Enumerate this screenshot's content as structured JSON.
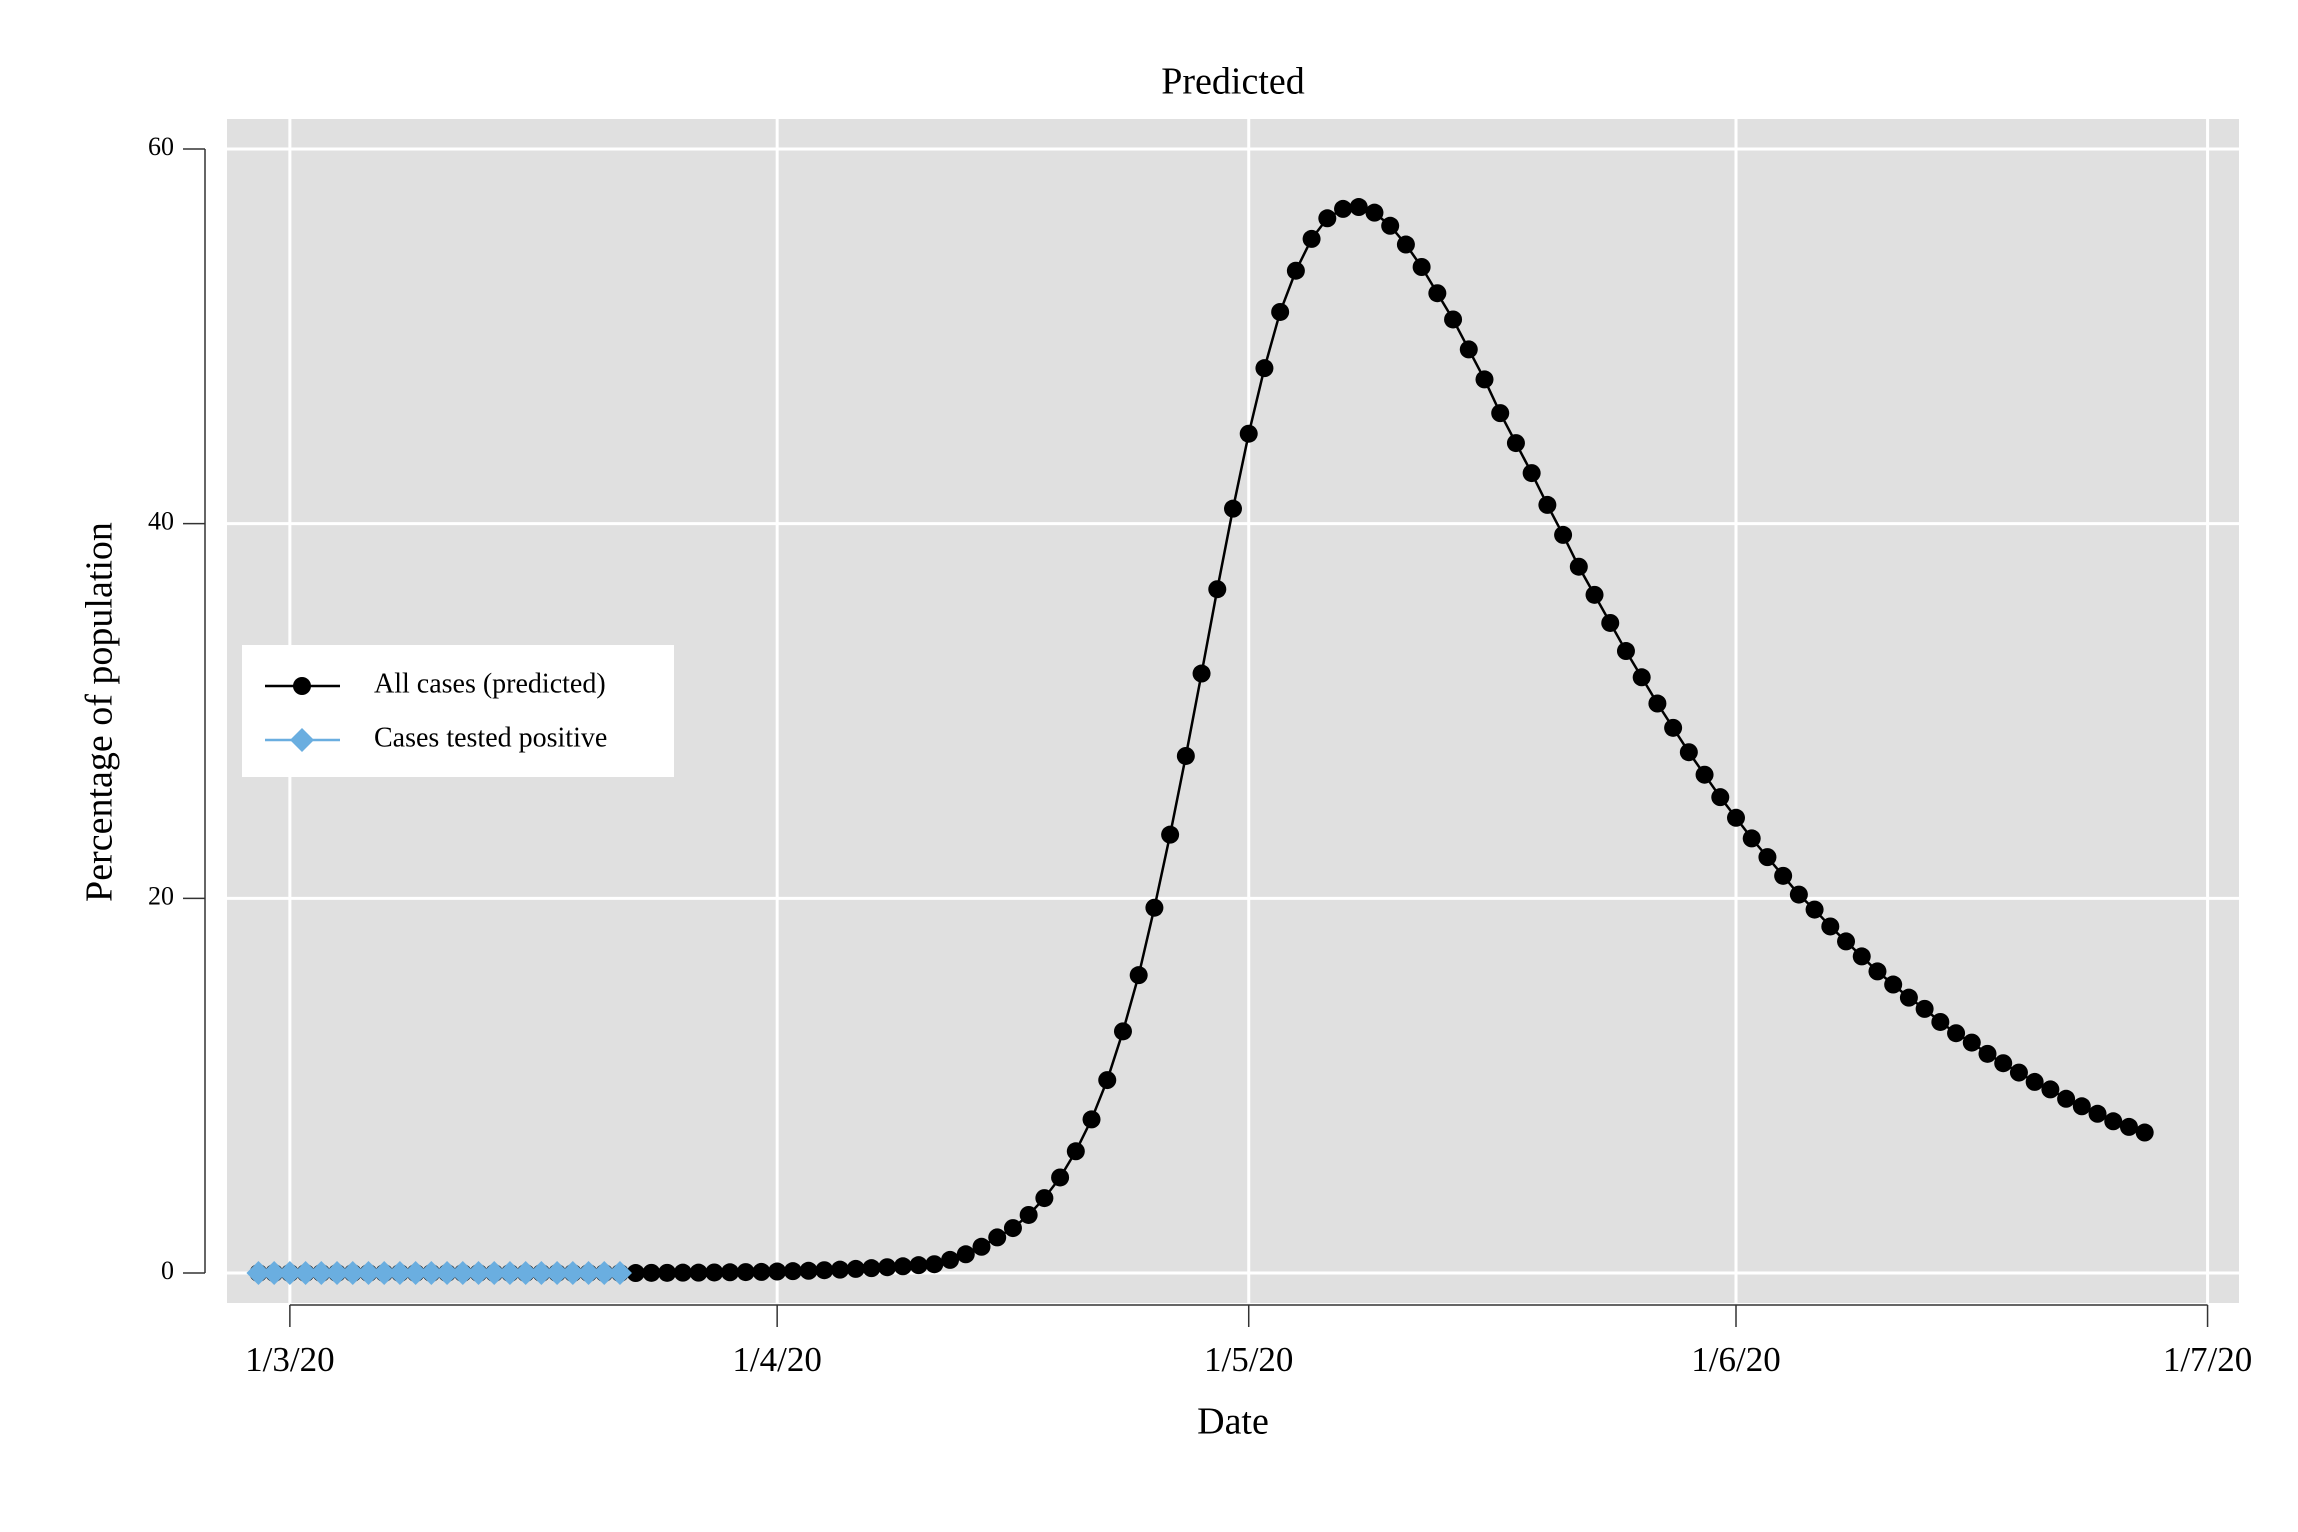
{
  "chart_data": {
    "type": "line",
    "title": "Predicted",
    "x_label": "Date",
    "y_label": "Percentage of population",
    "series": [
      {
        "name": "All cases (predicted)",
        "color": "#000000",
        "marker": "circle",
        "x": [
          "28/2/20",
          "29/2/20",
          "1/3/20",
          "2/3/20",
          "3/3/20",
          "4/3/20",
          "5/3/20",
          "6/3/20",
          "7/3/20",
          "8/3/20",
          "9/3/20",
          "10/3/20",
          "11/3/20",
          "12/3/20",
          "13/3/20",
          "14/3/20",
          "15/3/20",
          "16/3/20",
          "17/3/20",
          "18/3/20",
          "19/3/20",
          "20/3/20",
          "21/3/20",
          "22/3/20",
          "23/3/20",
          "24/3/20",
          "25/3/20",
          "26/3/20",
          "27/3/20",
          "28/3/20",
          "29/3/20",
          "30/3/20",
          "31/3/20",
          "1/4/20",
          "2/4/20",
          "3/4/20",
          "4/4/20",
          "5/4/20",
          "6/4/20",
          "7/4/20",
          "8/4/20",
          "9/4/20",
          "10/4/20",
          "11/4/20",
          "12/4/20",
          "13/4/20",
          "14/4/20",
          "15/4/20",
          "16/4/20",
          "17/4/20",
          "18/4/20",
          "19/4/20",
          "20/4/20",
          "21/4/20",
          "22/4/20",
          "23/4/20",
          "24/4/20",
          "25/4/20",
          "26/4/20",
          "27/4/20",
          "28/4/20",
          "29/4/20",
          "30/4/20",
          "1/5/20",
          "2/5/20",
          "3/5/20",
          "4/5/20",
          "5/5/20",
          "6/5/20",
          "7/5/20",
          "8/5/20",
          "9/5/20",
          "10/5/20",
          "11/5/20",
          "12/5/20",
          "13/5/20",
          "14/5/20",
          "15/5/20",
          "16/5/20",
          "17/5/20",
          "18/5/20",
          "19/5/20",
          "20/5/20",
          "21/5/20",
          "22/5/20",
          "23/5/20",
          "24/5/20",
          "25/5/20",
          "26/5/20",
          "27/5/20",
          "28/5/20",
          "29/5/20",
          "30/5/20",
          "31/5/20",
          "1/6/20",
          "2/6/20",
          "3/6/20",
          "4/6/20",
          "5/6/20",
          "6/6/20",
          "7/6/20",
          "8/6/20",
          "9/6/20",
          "10/6/20",
          "11/6/20",
          "12/6/20",
          "13/6/20",
          "14/6/20",
          "15/6/20",
          "16/6/20",
          "17/6/20",
          "18/6/20",
          "19/6/20",
          "20/6/20",
          "21/6/20",
          "22/6/20",
          "23/6/20",
          "24/6/20",
          "25/6/20",
          "26/6/20",
          "27/6/20"
        ],
        "values": [
          0,
          0,
          0,
          0,
          0,
          0,
          0,
          0,
          0,
          0,
          0,
          0,
          0,
          0,
          0,
          0,
          0,
          0,
          0,
          0,
          0,
          0,
          0,
          0,
          0,
          0.01,
          0.01,
          0.02,
          0.02,
          0.03,
          0.04,
          0.05,
          0.06,
          0.08,
          0.1,
          0.12,
          0.15,
          0.18,
          0.22,
          0.26,
          0.31,
          0.36,
          0.42,
          0.47,
          0.7,
          1.0,
          1.4,
          1.9,
          2.4,
          3.1,
          4.0,
          5.1,
          6.5,
          8.2,
          10.3,
          12.9,
          15.9,
          19.5,
          23.4,
          27.6,
          32.0,
          36.5,
          40.8,
          44.8,
          48.3,
          51.3,
          53.5,
          55.2,
          56.3,
          56.8,
          56.9,
          56.6,
          55.9,
          54.9,
          53.7,
          52.3,
          50.9,
          49.3,
          47.7,
          45.9,
          44.3,
          42.7,
          41.0,
          39.4,
          37.7,
          36.2,
          34.7,
          33.2,
          31.8,
          30.4,
          29.1,
          27.8,
          26.6,
          25.4,
          24.3,
          23.2,
          22.2,
          21.2,
          20.2,
          19.4,
          18.5,
          17.7,
          16.9,
          16.1,
          15.4,
          14.7,
          14.1,
          13.4,
          12.8,
          12.3,
          11.7,
          11.2,
          10.7,
          10.2,
          9.8,
          9.3,
          8.9,
          8.5,
          8.1,
          7.8,
          7.5
        ]
      },
      {
        "name": "Cases tested positive",
        "color": "#6aaee0",
        "marker": "diamond",
        "x": [
          "28/2/20",
          "29/2/20",
          "1/3/20",
          "2/3/20",
          "3/3/20",
          "4/3/20",
          "5/3/20",
          "6/3/20",
          "7/3/20",
          "8/3/20",
          "9/3/20",
          "10/3/20",
          "11/3/20",
          "12/3/20",
          "13/3/20",
          "14/3/20",
          "15/3/20",
          "16/3/20",
          "17/3/20",
          "18/3/20",
          "19/3/20",
          "20/3/20",
          "21/3/20",
          "22/3/20"
        ],
        "values": [
          0,
          0,
          0,
          0,
          0,
          0,
          0,
          0,
          0,
          0,
          0,
          0,
          0,
          0,
          0,
          0,
          0,
          0,
          0,
          0,
          0,
          0,
          0,
          0
        ]
      }
    ],
    "xlim": [
      "26/2/20",
      "3/7/20"
    ],
    "xticks": [
      "1/3/20",
      "1/4/20",
      "1/5/20",
      "1/6/20",
      "1/7/20"
    ],
    "ylim": [
      -1.6,
      61.6
    ],
    "yticks": [
      0,
      20,
      40,
      60
    ],
    "grid": true,
    "legend": "left"
  }
}
